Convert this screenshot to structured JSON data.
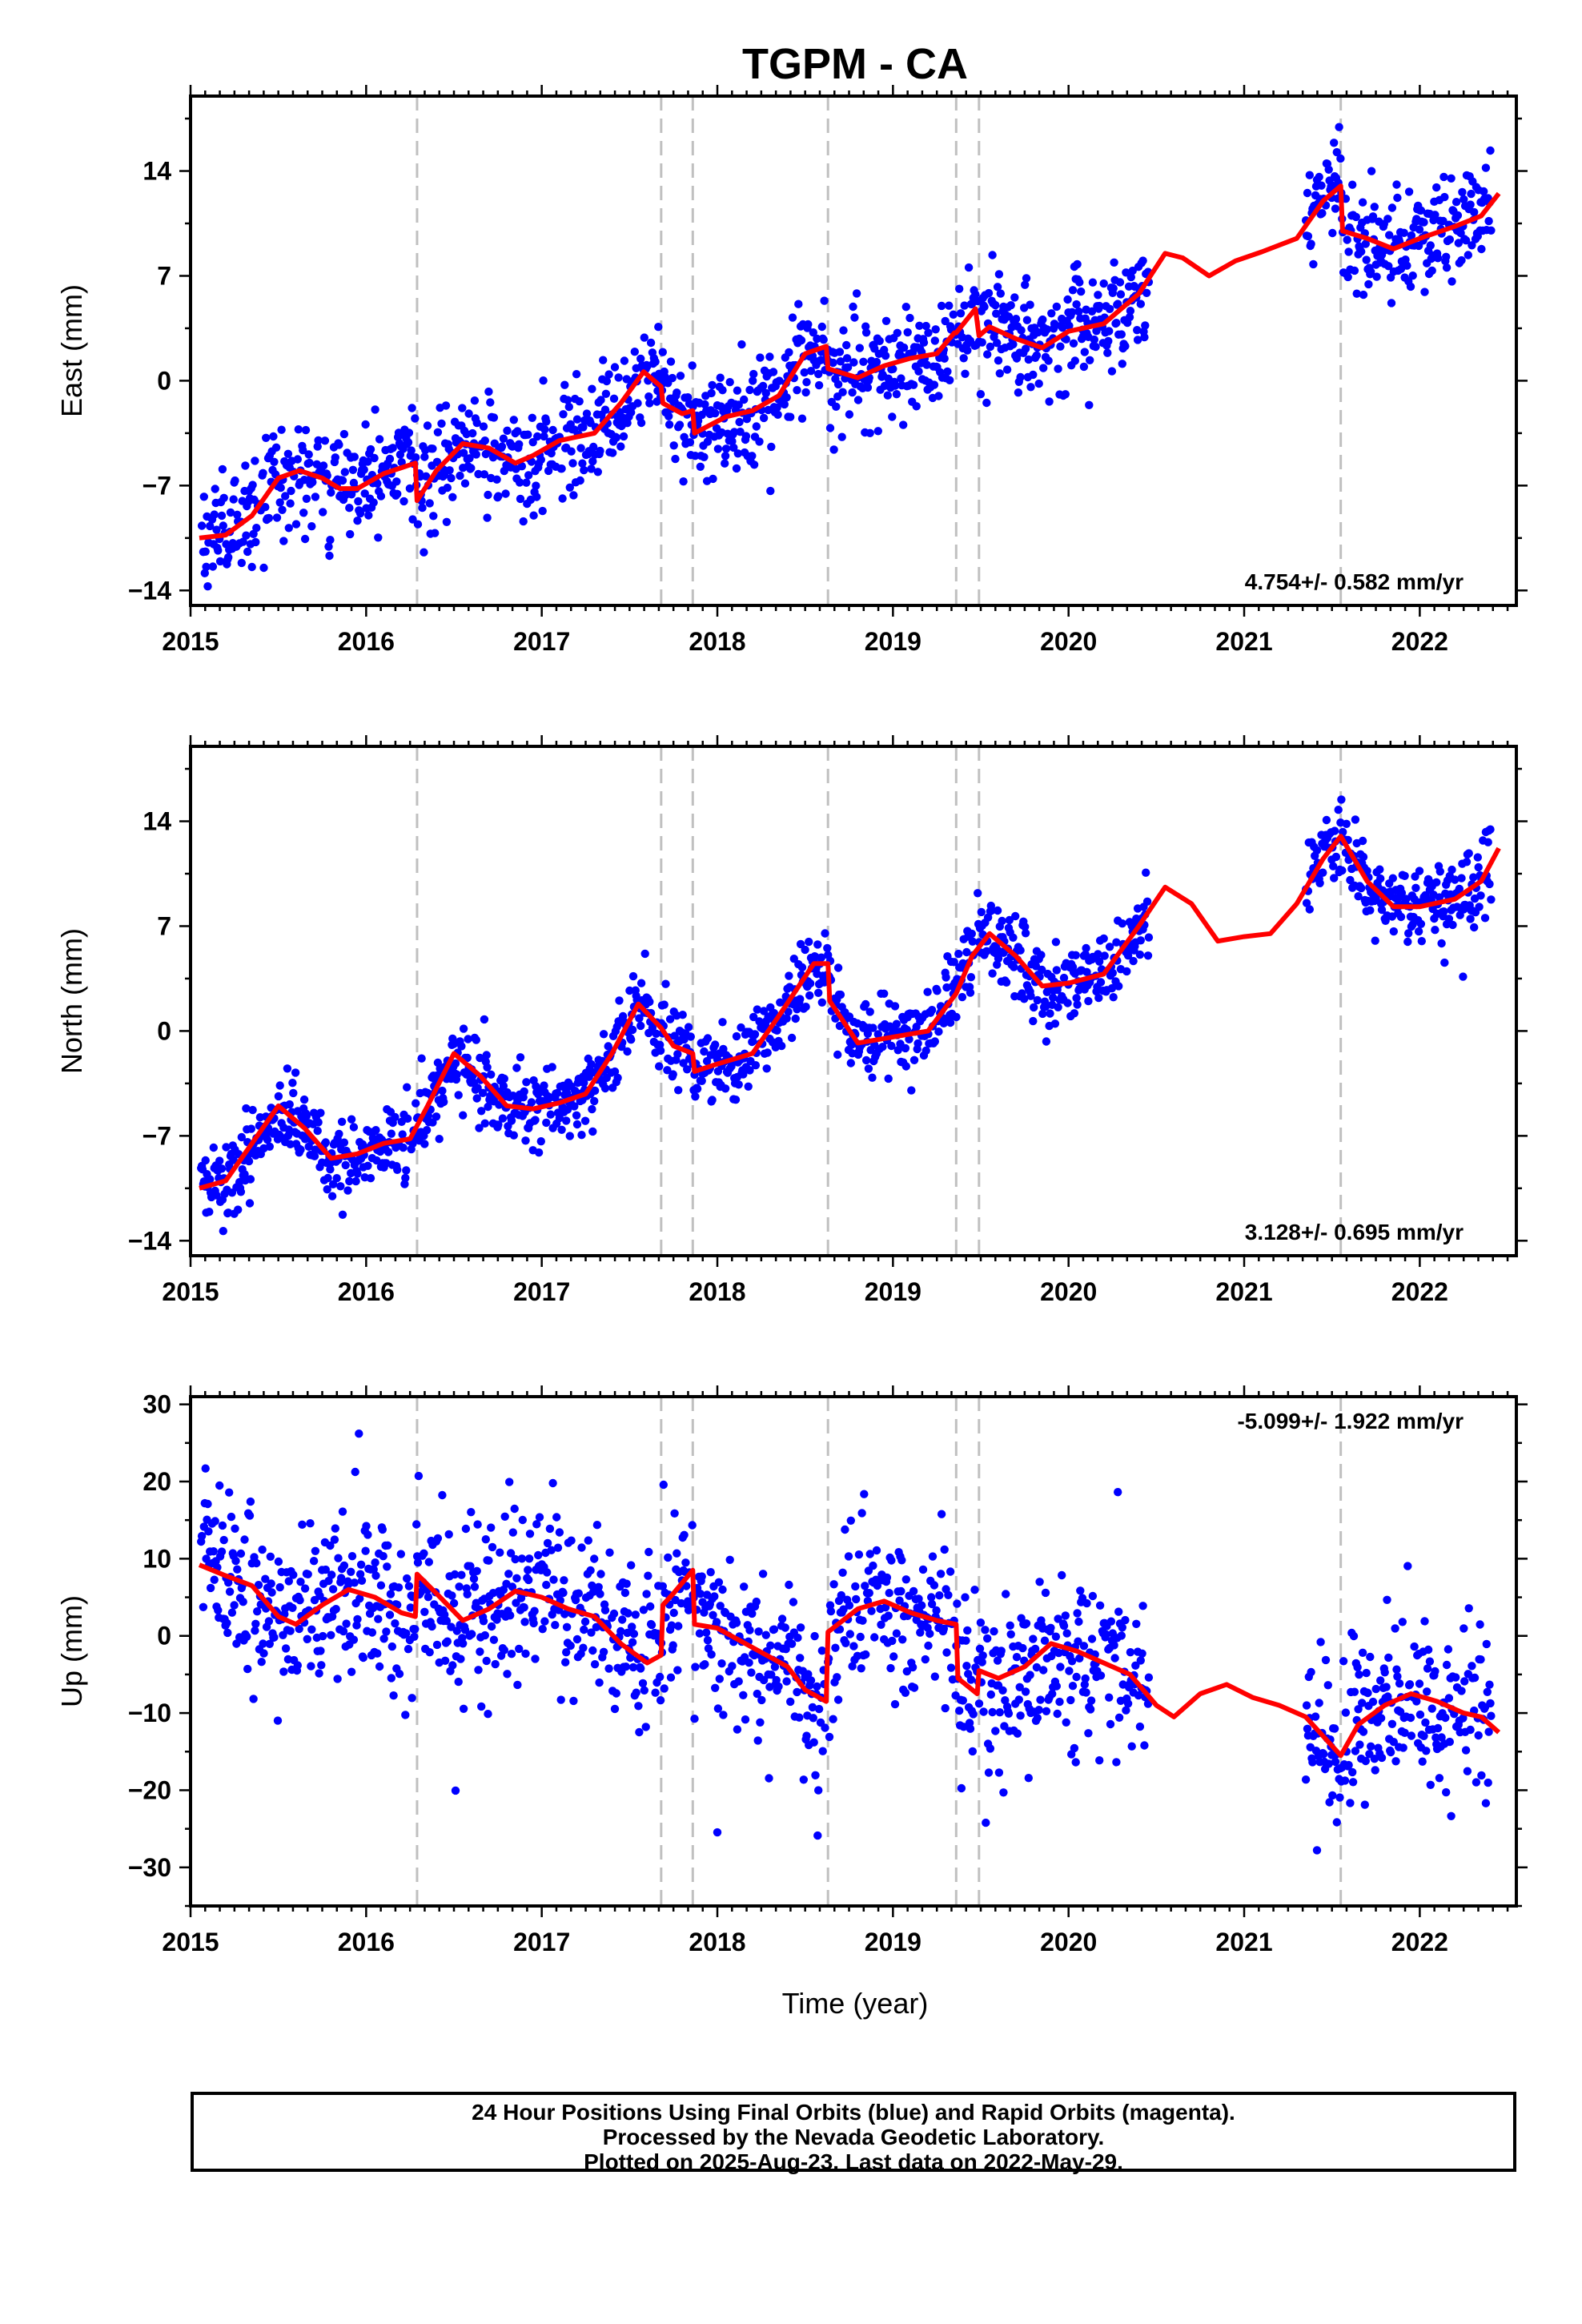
{
  "title": "TGPM - CA",
  "xlabel": "Time (year)",
  "footer": {
    "line1": "24 Hour Positions Using Final Orbits (blue) and Rapid Orbits (magenta).",
    "line2": "Processed by the Nevada Geodetic Laboratory.",
    "line3": "Plotted on 2025-Aug-23. Last data on 2022-May-29."
  },
  "colors": {
    "points": "#0000ff",
    "model": "#ff0000",
    "steps": "#c0c0c0"
  },
  "chart_data": [
    {
      "type": "scatter",
      "ylabel": "East (mm)",
      "rate": "4.754+/- 0.582 mm/yr",
      "rate_pos": "bottom-right",
      "xlim": [
        2015.0,
        2022.55
      ],
      "ylim": [
        -15,
        19
      ],
      "yticks": [
        -14,
        -7,
        0,
        7,
        14
      ],
      "xticks": [
        2015,
        2016,
        2017,
        2018,
        2019,
        2020,
        2021,
        2022
      ],
      "steps": [
        2016.29,
        2017.68,
        2017.86,
        2018.63,
        2019.36,
        2019.49,
        2021.55
      ],
      "gaps": [
        [
          2020.46,
          2021.35
        ]
      ],
      "noise": 1.8,
      "model": [
        [
          2015.05,
          -10.5
        ],
        [
          2015.2,
          -10.3
        ],
        [
          2015.35,
          -9
        ],
        [
          2015.5,
          -6.5
        ],
        [
          2015.62,
          -6
        ],
        [
          2015.75,
          -6.5
        ],
        [
          2015.85,
          -7.2
        ],
        [
          2015.95,
          -7.2
        ],
        [
          2016.1,
          -6.2
        ],
        [
          2016.28,
          -5.5
        ],
        [
          2016.29,
          -8
        ],
        [
          2016.4,
          -6
        ],
        [
          2016.55,
          -4.2
        ],
        [
          2016.7,
          -4.5
        ],
        [
          2016.85,
          -5.5
        ],
        [
          2016.95,
          -5
        ],
        [
          2017.1,
          -4
        ],
        [
          2017.3,
          -3.5
        ],
        [
          2017.45,
          -1.5
        ],
        [
          2017.58,
          0.6
        ],
        [
          2017.68,
          -0.4
        ],
        [
          2017.69,
          -1.5
        ],
        [
          2017.8,
          -2.2
        ],
        [
          2017.86,
          -2
        ],
        [
          2017.87,
          -3.5
        ],
        [
          2018.05,
          -2.4
        ],
        [
          2018.2,
          -2
        ],
        [
          2018.35,
          -1
        ],
        [
          2018.5,
          1.8
        ],
        [
          2018.62,
          2.3
        ],
        [
          2018.63,
          0.8
        ],
        [
          2018.8,
          0.2
        ],
        [
          2018.95,
          1
        ],
        [
          2019.1,
          1.5
        ],
        [
          2019.25,
          1.8
        ],
        [
          2019.35,
          3.2
        ],
        [
          2019.36,
          3.2
        ],
        [
          2019.47,
          4.8
        ],
        [
          2019.49,
          3
        ],
        [
          2019.55,
          3.6
        ],
        [
          2019.7,
          2.8
        ],
        [
          2019.85,
          2.2
        ],
        [
          2020.0,
          3.3
        ],
        [
          2020.2,
          3.8
        ],
        [
          2020.4,
          5.8
        ],
        [
          2020.55,
          8.5
        ],
        [
          2020.65,
          8.2
        ],
        [
          2020.8,
          7
        ],
        [
          2020.95,
          8
        ],
        [
          2021.1,
          8.6
        ],
        [
          2021.3,
          9.5
        ],
        [
          2021.45,
          12
        ],
        [
          2021.55,
          13
        ],
        [
          2021.56,
          10
        ],
        [
          2021.7,
          9.5
        ],
        [
          2021.85,
          8.8
        ],
        [
          2022.0,
          9.5
        ],
        [
          2022.2,
          10.3
        ],
        [
          2022.35,
          11
        ],
        [
          2022.45,
          12.5
        ]
      ]
    },
    {
      "type": "scatter",
      "ylabel": "North (mm)",
      "rate": "3.128+/- 0.695 mm/yr",
      "rate_pos": "bottom-right",
      "xlim": [
        2015.0,
        2022.55
      ],
      "ylim": [
        -15,
        19
      ],
      "yticks": [
        -14,
        -7,
        0,
        7,
        14
      ],
      "xticks": [
        2015,
        2016,
        2017,
        2018,
        2019,
        2020,
        2021,
        2022
      ],
      "steps": [
        2016.29,
        2017.68,
        2017.86,
        2018.63,
        2019.36,
        2019.49,
        2021.55
      ],
      "gaps": [
        [
          2020.46,
          2021.35
        ]
      ],
      "noise": 1.3,
      "model": [
        [
          2015.05,
          -10.5
        ],
        [
          2015.2,
          -10
        ],
        [
          2015.35,
          -7.5
        ],
        [
          2015.5,
          -5
        ],
        [
          2015.65,
          -6.5
        ],
        [
          2015.8,
          -8.5
        ],
        [
          2015.95,
          -8.2
        ],
        [
          2016.1,
          -7.5
        ],
        [
          2016.25,
          -7.2
        ],
        [
          2016.35,
          -5
        ],
        [
          2016.5,
          -1.5
        ],
        [
          2016.65,
          -3
        ],
        [
          2016.8,
          -5
        ],
        [
          2016.95,
          -5.2
        ],
        [
          2017.1,
          -4.8
        ],
        [
          2017.25,
          -4.2
        ],
        [
          2017.4,
          -1.5
        ],
        [
          2017.55,
          1.8
        ],
        [
          2017.68,
          0.2
        ],
        [
          2017.75,
          -1
        ],
        [
          2017.86,
          -1.5
        ],
        [
          2017.87,
          -2.7
        ],
        [
          2018.0,
          -2.2
        ],
        [
          2018.2,
          -1.5
        ],
        [
          2018.35,
          1
        ],
        [
          2018.55,
          4.5
        ],
        [
          2018.63,
          4.5
        ],
        [
          2018.64,
          2
        ],
        [
          2018.8,
          -0.8
        ],
        [
          2018.95,
          -0.5
        ],
        [
          2019.2,
          0
        ],
        [
          2019.36,
          2.5
        ],
        [
          2019.45,
          5
        ],
        [
          2019.55,
          6.5
        ],
        [
          2019.7,
          5
        ],
        [
          2019.85,
          3
        ],
        [
          2020.0,
          3.2
        ],
        [
          2020.2,
          3.8
        ],
        [
          2020.4,
          7
        ],
        [
          2020.55,
          9.6
        ],
        [
          2020.7,
          8.5
        ],
        [
          2020.85,
          6
        ],
        [
          2021.0,
          6.3
        ],
        [
          2021.15,
          6.5
        ],
        [
          2021.3,
          8.5
        ],
        [
          2021.45,
          11.5
        ],
        [
          2021.55,
          13
        ],
        [
          2021.7,
          10
        ],
        [
          2021.85,
          8.3
        ],
        [
          2022.0,
          8.3
        ],
        [
          2022.2,
          8.8
        ],
        [
          2022.35,
          10
        ],
        [
          2022.45,
          12.2
        ]
      ]
    },
    {
      "type": "scatter",
      "ylabel": "Up (mm)",
      "rate": "-5.099+/- 1.922 mm/yr",
      "rate_pos": "top-right",
      "xlim": [
        2015.0,
        2022.55
      ],
      "ylim": [
        -35,
        31
      ],
      "yticks": [
        -30,
        -20,
        -10,
        0,
        10,
        20,
        30
      ],
      "xticks": [
        2015,
        2016,
        2017,
        2018,
        2019,
        2020,
        2021,
        2022
      ],
      "steps": [
        2016.29,
        2017.68,
        2017.86,
        2018.63,
        2019.36,
        2019.49,
        2021.55
      ],
      "gaps": [
        [
          2020.46,
          2021.35
        ]
      ],
      "noise": 5.5,
      "model": [
        [
          2015.05,
          9.2
        ],
        [
          2015.2,
          7.8
        ],
        [
          2015.35,
          6.5
        ],
        [
          2015.5,
          2.5
        ],
        [
          2015.6,
          1.5
        ],
        [
          2015.75,
          4
        ],
        [
          2015.9,
          6
        ],
        [
          2016.05,
          5
        ],
        [
          2016.2,
          3
        ],
        [
          2016.28,
          2.5
        ],
        [
          2016.29,
          8
        ],
        [
          2016.4,
          5.5
        ],
        [
          2016.55,
          2
        ],
        [
          2016.7,
          3.5
        ],
        [
          2016.85,
          5.8
        ],
        [
          2017.0,
          5
        ],
        [
          2017.15,
          3.5
        ],
        [
          2017.3,
          2.5
        ],
        [
          2017.45,
          -1
        ],
        [
          2017.6,
          -3.5
        ],
        [
          2017.68,
          -2.5
        ],
        [
          2017.69,
          4
        ],
        [
          2017.75,
          5.5
        ],
        [
          2017.86,
          8.5
        ],
        [
          2017.87,
          1.5
        ],
        [
          2018.0,
          1
        ],
        [
          2018.2,
          -1.5
        ],
        [
          2018.4,
          -4
        ],
        [
          2018.5,
          -7
        ],
        [
          2018.62,
          -8.5
        ],
        [
          2018.63,
          0.5
        ],
        [
          2018.8,
          3.5
        ],
        [
          2018.95,
          4.5
        ],
        [
          2019.1,
          3
        ],
        [
          2019.25,
          2
        ],
        [
          2019.36,
          1.5
        ],
        [
          2019.37,
          -5.5
        ],
        [
          2019.48,
          -7.5
        ],
        [
          2019.49,
          -4.5
        ],
        [
          2019.6,
          -5.5
        ],
        [
          2019.75,
          -4
        ],
        [
          2019.9,
          -1
        ],
        [
          2020.05,
          -2
        ],
        [
          2020.2,
          -3.5
        ],
        [
          2020.35,
          -5
        ],
        [
          2020.5,
          -9
        ],
        [
          2020.6,
          -10.5
        ],
        [
          2020.75,
          -7.5
        ],
        [
          2020.9,
          -6.3
        ],
        [
          2021.05,
          -8
        ],
        [
          2021.2,
          -9
        ],
        [
          2021.35,
          -10.5
        ],
        [
          2021.45,
          -13
        ],
        [
          2021.55,
          -15.5
        ],
        [
          2021.65,
          -11.5
        ],
        [
          2021.8,
          -9
        ],
        [
          2021.95,
          -7.5
        ],
        [
          2022.1,
          -8.5
        ],
        [
          2022.25,
          -10
        ],
        [
          2022.35,
          -10.5
        ],
        [
          2022.45,
          -12.5
        ]
      ]
    }
  ]
}
